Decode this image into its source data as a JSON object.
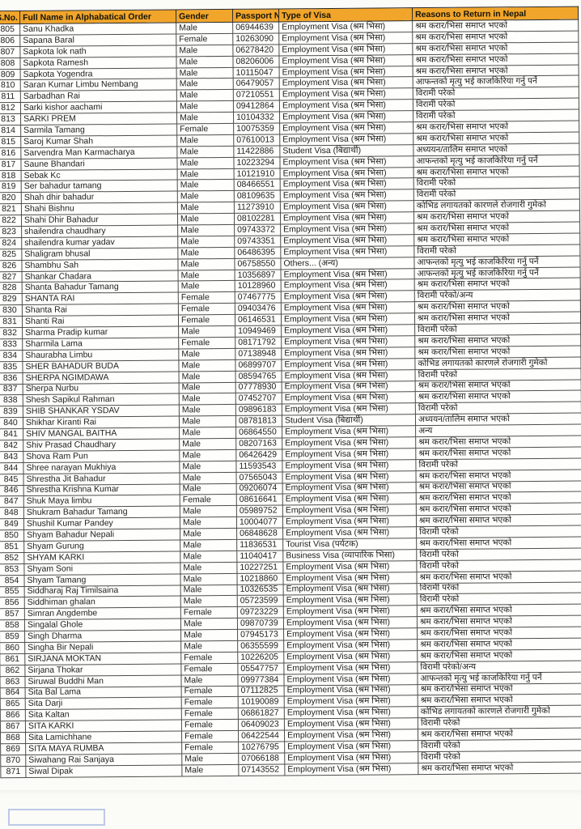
{
  "table": {
    "header_bg": "#f1a52a",
    "columns": [
      {
        "key": "sno",
        "label": "S.No."
      },
      {
        "key": "name",
        "label": "Full Name in Alphabatical Order"
      },
      {
        "key": "gender",
        "label": "Gender"
      },
      {
        "key": "passport",
        "label": "Passport No"
      },
      {
        "key": "visa",
        "label": "Type of Visa"
      },
      {
        "key": "reason",
        "label": "Reasons to Return in Nepal"
      }
    ],
    "rows": [
      [
        805,
        "Sanu Khadka",
        "Male",
        "06944639",
        "Employment Visa (श्रम भिसा)",
        "श्रम करार/भिसा समाप्त भएको"
      ],
      [
        806,
        "Sapana Baral",
        "Female",
        "10263090",
        "Employment Visa (श्रम भिसा)",
        "श्रम करार/भिसा समाप्त भएको"
      ],
      [
        807,
        "Sapkota lok nath",
        "Male",
        "06278420",
        "Employment Visa (श्रम भिसा)",
        "श्रम करार/भिसा समाप्त भएको"
      ],
      [
        808,
        "Sapkota Ramesh",
        "Male",
        "08206006",
        "Employment Visa (श्रम भिसा)",
        "श्रम करार/भिसा समाप्त भएको"
      ],
      [
        809,
        "Sapkota Yogendra",
        "Male",
        "10115047",
        "Employment Visa (श्रम भिसा)",
        "श्रम करार/भिसा समाप्त भएको"
      ],
      [
        810,
        "Saran Kumar Limbu Nembang",
        "Male",
        "06479057",
        "Employment Visa (श्रम भिसा)",
        "आफन्तको मृत्यु भई काजकिरिया गर्नु पर्ने"
      ],
      [
        811,
        "Sarbadhan Rai",
        "Male",
        "07210551",
        "Employment Visa (श्रम भिसा)",
        "विरामी परेको"
      ],
      [
        812,
        "Sarki kishor aachami",
        "Male",
        "09412864",
        "Employment Visa (श्रम भिसा)",
        "विरामी परेको"
      ],
      [
        813,
        "SARKI PREM",
        "Male",
        "10104332",
        "Employment Visa (श्रम भिसा)",
        "विरामी परेको"
      ],
      [
        814,
        "Sarmila Tamang",
        "Female",
        "10075359",
        "Employment Visa (श्रम भिसा)",
        "श्रम करार/भिसा समाप्त भएको"
      ],
      [
        815,
        "Saroj Kumar Shah",
        "Male",
        "07610013",
        "Employment Visa (श्रम भिसा)",
        "श्रम करार/भिसा समाप्त भएको"
      ],
      [
        816,
        "Sarvendra Man Karmacharya",
        "Male",
        "11422886",
        "Student Visa (बिद्यार्थी)",
        "अध्ययन/तालिम समाप्त भएको"
      ],
      [
        817,
        "Saune Bhandari",
        "Male",
        "10223294",
        "Employment Visa (श्रम भिसा)",
        "आफन्तको मृत्यु भई काजकिरिया गर्नु पर्ने"
      ],
      [
        818,
        "Sebak Kc",
        "Male",
        "10121910",
        "Employment Visa (श्रम भिसा)",
        "श्रम करार/भिसा समाप्त भएको"
      ],
      [
        819,
        "Ser bahadur tamang",
        "Male",
        "08466551",
        "Employment Visa (श्रम भिसा)",
        "विरामी परेको"
      ],
      [
        820,
        "Shah dhir bahadur",
        "Male",
        "08109635",
        "Employment Visa (श्रम भिसा)",
        "विरामी परेको"
      ],
      [
        821,
        "Shahi Bishnu",
        "Male",
        "11273910",
        "Employment Visa (श्रम भिसा)",
        "कोभिड लगायतको कारणले रोजगारी गुमेको"
      ],
      [
        822,
        "Shahi Dhir Bahadur",
        "Male",
        "08102281",
        "Employment Visa (श्रम भिसा)",
        "श्रम करार/भिसा समाप्त भएको"
      ],
      [
        823,
        "shailendra chaudhary",
        "Male",
        "09743372",
        "Employment Visa (श्रम भिसा)",
        "श्रम करार/भिसा समाप्त भएको"
      ],
      [
        824,
        "shailendra kumar yadav",
        "Male",
        "09743351",
        "Employment Visa (श्रम भिसा)",
        "श्रम करार/भिसा समाप्त भएको"
      ],
      [
        825,
        "Shaligram bhusal",
        "Male",
        "06486395",
        "Employment Visa (श्रम भिसा)",
        "विरामी परेको"
      ],
      [
        826,
        "Shambhu Sah",
        "Male",
        "06758550",
        "Others... (अन्य)",
        "आफन्तको मृत्यु भई काजकिरिया गर्नु पर्ने"
      ],
      [
        827,
        "Shankar Chadara",
        "Male",
        "10356897",
        "Employment Visa (श्रम भिसा)",
        "आफन्तको मृत्यु भई काजकिरिया गर्नु पर्ने"
      ],
      [
        828,
        "Shanta Bahadur Tamang",
        "Male",
        "10128960",
        "Employment Visa (श्रम भिसा)",
        "श्रम करार/भिसा समाप्त भएको"
      ],
      [
        829,
        "SHANTA RAI",
        "Female",
        "07467775",
        "Employment Visa (श्रम भिसा)",
        "विरामी परेको/अन्य"
      ],
      [
        830,
        "Shanta Rai",
        "Female",
        "09403476",
        "Employment Visa (श्रम भिसा)",
        "श्रम करार/भिसा समाप्त भएको"
      ],
      [
        831,
        "Shanti Rai",
        "Female",
        "06146531",
        "Employment Visa (श्रम भिसा)",
        "श्रम करार/भिसा समाप्त भएको"
      ],
      [
        832,
        "Sharma Pradip kumar",
        "Male",
        "10949469",
        "Employment Visa (श्रम भिसा)",
        "विरामी परेको"
      ],
      [
        833,
        "Sharmila Lama",
        "Female",
        "08171792",
        "Employment Visa (श्रम भिसा)",
        "श्रम करार/भिसा समाप्त भएको"
      ],
      [
        834,
        "Shaurabha Limbu",
        "Male",
        "07138948",
        "Employment Visa (श्रम भिसा)",
        "श्रम करार/भिसा समाप्त भएको"
      ],
      [
        835,
        "SHER BAHADUR BUDA",
        "Male",
        "06899707",
        "Employment Visa (श्रम भिसा)",
        "कोभिड लगायतको कारणले रोजगारी गुमेको"
      ],
      [
        836,
        "SHERPA NGIMDAWA",
        "Male",
        "08594765",
        "Employment Visa (श्रम भिसा)",
        "विरामी परेको"
      ],
      [
        837,
        "Sherpa Nurbu",
        "Male",
        "07778930",
        "Employment Visa (श्रम भिसा)",
        "श्रम करार/भिसा समाप्त भएको"
      ],
      [
        838,
        "Shesh Sapikul Rahman",
        "Male",
        "07452707",
        "Employment Visa (श्रम भिसा)",
        "श्रम करार/भिसा समाप्त भएको"
      ],
      [
        839,
        "SHIB SHANKAR YSDAV",
        "Male",
        "09896183",
        "Employment Visa (श्रम भिसा)",
        "विरामी परेको"
      ],
      [
        840,
        "Shikhar Kiranti Rai",
        "Male",
        "08781813",
        "Student Visa (बिद्यार्थी)",
        "अध्ययन/तालिम समाप्त भएको"
      ],
      [
        841,
        "SHIV MANGAL BAITHA",
        "Male",
        "06864550",
        "Employment Visa (श्रम भिसा)",
        "अन्य"
      ],
      [
        842,
        "Shiv Prasad Chaudhary",
        "Male",
        "08207163",
        "Employment Visa (श्रम भिसा)",
        "श्रम करार/भिसा समाप्त भएको"
      ],
      [
        843,
        "Shova Ram Pun",
        "Male",
        "06426429",
        "Employment Visa (श्रम भिसा)",
        "श्रम करार/भिसा समाप्त भएको"
      ],
      [
        844,
        "Shree narayan Mukhiya",
        "Male",
        "11593543",
        "Employment Visa (श्रम भिसा)",
        "विरामी परेको"
      ],
      [
        845,
        "Shrestha Jit Bahadur",
        "Male",
        "07565043",
        "Employment Visa (श्रम भिसा)",
        "श्रम करार/भिसा समाप्त भएको"
      ],
      [
        846,
        "Shrestha Krishna Kumar",
        "Male",
        "09206074",
        "Employment Visa (श्रम भिसा)",
        "श्रम करार/भिसा समाप्त भएको"
      ],
      [
        847,
        "Shuk Maya limbu",
        "Female",
        "08616641",
        "Employment Visa (श्रम भिसा)",
        "श्रम करार/भिसा समाप्त भएको"
      ],
      [
        848,
        "Shukram Bahadur Tamang",
        "Male",
        "05989752",
        "Employment Visa (श्रम भिसा)",
        "श्रम करार/भिसा समाप्त भएको"
      ],
      [
        849,
        "Shushil Kumar Pandey",
        "Male",
        "10004077",
        "Employment Visa (श्रम भिसा)",
        "श्रम करार/भिसा समाप्त भएको"
      ],
      [
        850,
        "Shyam Bahadur Nepali",
        "Male",
        "06848628",
        "Employment Visa (श्रम भिसा)",
        "विरामी परेको"
      ],
      [
        851,
        "Shyam Gurung",
        "Male",
        "11836531",
        "Tourist Visa (पर्यटक)",
        "श्रम करार/भिसा समाप्त भएको"
      ],
      [
        852,
        "SHYAM KARKI",
        "Male",
        "11040417",
        "Business Visa (व्यापारिक भिसा)",
        "विरामी परेको"
      ],
      [
        853,
        "Shyam Soni",
        "Male",
        "10227251",
        "Employment Visa (श्रम भिसा)",
        "विरामी परेको"
      ],
      [
        854,
        "Shyam Tamang",
        "Male",
        "10218860",
        "Employment Visa (श्रम भिसा)",
        "श्रम करार/भिसा समाप्त भएको"
      ],
      [
        855,
        "Siddharaj Raj Timilsaina",
        "Male",
        "10326535",
        "Employment Visa (श्रम भिसा)",
        "विरामी परेको"
      ],
      [
        856,
        "Siddhiman ghalan",
        "Male",
        "05723599",
        "Employment Visa (श्रम भिसा)",
        "विरामी परेको"
      ],
      [
        857,
        "Simran Angdembe",
        "Female",
        "09723229",
        "Employment Visa (श्रम भिसा)",
        "श्रम करार/भिसा समाप्त भएको"
      ],
      [
        858,
        "Singalal Ghole",
        "Male",
        "09870739",
        "Employment Visa (श्रम भिसा)",
        "श्रम करार/भिसा समाप्त भएको"
      ],
      [
        859,
        "Singh Dharma",
        "Male",
        "07945173",
        "Employment Visa (श्रम भिसा)",
        "श्रम करार/भिसा समाप्त भएको"
      ],
      [
        860,
        "Singha Bir Nepali",
        "Male",
        "06355599",
        "Employment Visa (श्रम भिसा)",
        "श्रम करार/भिसा समाप्त भएको"
      ],
      [
        861,
        "SIRJANA MOKTAN",
        "Female",
        "10226205",
        "Employment Visa (श्रम भिसा)",
        "श्रम करार/भिसा समाप्त भएको"
      ],
      [
        862,
        "Sirjana Thokar",
        "Female",
        "05547757",
        "Employment Visa (श्रम भिसा)",
        "विरामी परेको/अन्य"
      ],
      [
        863,
        "Siruwal Buddhi Man",
        "Male",
        "09977384",
        "Employment Visa (श्रम भिसा)",
        "आफन्तको मृत्यु भई काजकिरिया गर्नु पर्ने"
      ],
      [
        864,
        "Sita Bal Lama",
        "Female",
        "07112825",
        "Employment Visa (श्रम भिसा)",
        "श्रम करार/भिसा समाप्त भएको"
      ],
      [
        865,
        "Sita Darji",
        "Female",
        "10190089",
        "Employment Visa (श्रम भिसा)",
        "श्रम करार/भिसा समाप्त भएको"
      ],
      [
        866,
        "Sita Kaltan",
        "Female",
        "06861827",
        "Employment Visa (श्रम भिसा)",
        "कोभिड लगायतको कारणले रोजगारी गुमेको"
      ],
      [
        867,
        "SITA KARKI",
        "Female",
        "06409023",
        "Employment Visa (श्रम भिसा)",
        "विरामी परेको"
      ],
      [
        868,
        "Sita Lamichhane",
        "Female",
        "06422544",
        "Employment Visa (श्रम भिसा)",
        "श्रम करार/भिसा समाप्त भएको"
      ],
      [
        869,
        "SITA MAYA RUMBA",
        "Female",
        "10276795",
        "Employment Visa (श्रम भिसा)",
        "विरामी परेको"
      ],
      [
        870,
        "Siwahang Rai Sanjaya",
        "Male",
        "07066188",
        "Employment Visa (श्रम भिसा)",
        "विरामी परेको"
      ],
      [
        871,
        "Siwal Dipak",
        "Male",
        "07143552",
        "Employment Visa (श्रम भिसा)",
        "श्रम करार/भिसा समाप्त भएको"
      ]
    ]
  }
}
